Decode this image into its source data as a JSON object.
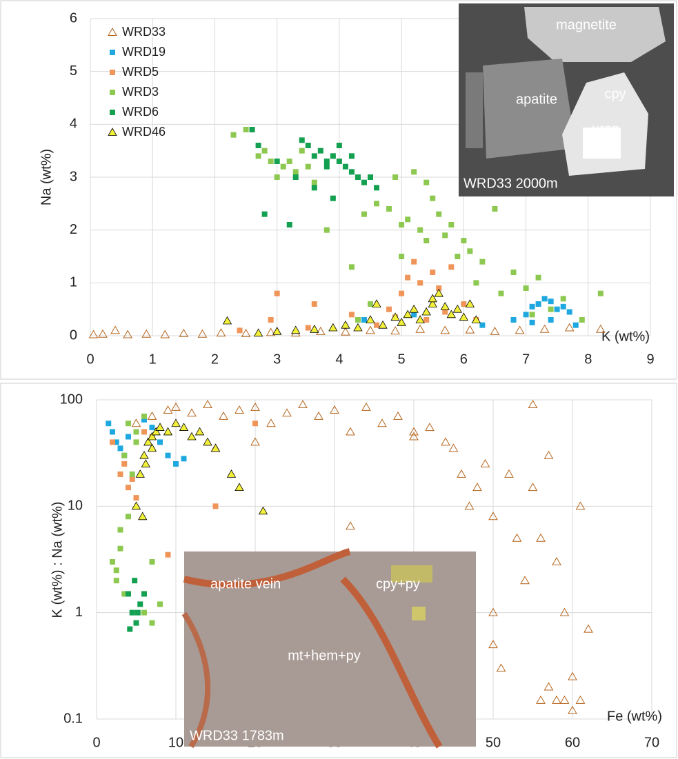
{
  "chart_data": [
    {
      "type": "scatter",
      "x_label": "K (wt%)",
      "y_label": "Na (wt%)",
      "xlim": [
        0,
        9
      ],
      "ylim": [
        0,
        6
      ],
      "xticks": [
        0,
        1,
        2,
        3,
        4,
        5,
        6,
        7,
        8,
        9
      ],
      "yticks": [
        0,
        1,
        2,
        3,
        4,
        5,
        6
      ],
      "grid": true,
      "legend": "upper left",
      "annotations": [
        "magnetite",
        "apatite",
        "cpy",
        "uran",
        "WRD33 2000m"
      ],
      "series": [
        {
          "name": "WRD33",
          "color": "#b5651d",
          "marker": "triangle-open",
          "x": [
            0.05,
            0.2,
            0.4,
            0.6,
            0.9,
            1.2,
            1.5,
            1.8,
            2.1,
            2.5,
            2.9,
            3.3,
            3.7,
            4.1,
            4.5,
            4.9,
            5.3,
            5.7,
            6.1,
            6.5,
            6.9,
            7.3,
            7.7,
            8.2
          ],
          "values": [
            0.02,
            0.03,
            0.1,
            0.02,
            0.03,
            0.02,
            0.04,
            0.03,
            0.05,
            0.04,
            0.06,
            0.05,
            0.08,
            0.07,
            0.1,
            0.09,
            0.12,
            0.1,
            0.11,
            0.08,
            0.1,
            0.12,
            0.15,
            0.12
          ]
        },
        {
          "name": "WRD19",
          "color": "#1fa8e0",
          "marker": "square",
          "x": [
            4.4,
            5.2,
            6.3,
            6.8,
            7.0,
            7.1,
            7.2,
            7.3,
            7.4,
            7.5,
            7.6,
            7.7,
            7.8,
            7.1,
            7.4
          ],
          "values": [
            0.3,
            0.4,
            0.2,
            0.3,
            0.4,
            0.55,
            0.6,
            0.7,
            0.65,
            0.5,
            0.55,
            0.45,
            0.2,
            0.25,
            0.3
          ]
        },
        {
          "name": "WRD5",
          "color": "#f0955a",
          "marker": "square",
          "x": [
            2.4,
            2.9,
            3.0,
            3.5,
            3.6,
            4.2,
            4.6,
            4.8,
            5.0,
            5.1,
            5.2,
            5.3,
            5.5,
            5.6,
            5.8,
            6.0,
            6.2,
            5.4,
            4.9,
            5.7
          ],
          "values": [
            0.1,
            0.3,
            0.8,
            0.15,
            0.6,
            0.4,
            0.2,
            0.5,
            0.8,
            1.1,
            1.4,
            1.0,
            1.2,
            0.9,
            1.3,
            0.6,
            0.3,
            0.3,
            0.35,
            0.45
          ]
        },
        {
          "name": "WRD3",
          "color": "#8dc850",
          "marker": "square",
          "x": [
            2.3,
            2.5,
            2.7,
            2.9,
            3.1,
            3.3,
            2.8,
            3.0,
            3.2,
            3.4,
            3.6,
            3.5,
            3.8,
            4.2,
            4.4,
            4.6,
            4.8,
            5.0,
            5.1,
            5.2,
            5.3,
            5.4,
            5.5,
            5.6,
            5.7,
            5.8,
            5.9,
            6.0,
            6.1,
            6.3,
            6.5,
            6.8,
            7.0,
            7.2,
            7.4,
            7.6,
            7.9,
            8.2,
            4.5,
            4.9,
            5.4,
            6.2,
            6.6,
            7.1,
            4.3,
            5.0
          ],
          "values": [
            3.8,
            3.9,
            3.4,
            3.3,
            3.2,
            3.1,
            3.5,
            3.0,
            3.3,
            3.5,
            2.9,
            3.2,
            2.0,
            1.3,
            2.3,
            2.5,
            2.4,
            2.1,
            2.2,
            3.1,
            2.0,
            1.8,
            2.6,
            2.3,
            1.9,
            2.1,
            1.5,
            1.8,
            1.6,
            1.4,
            2.4,
            1.2,
            0.9,
            1.1,
            0.5,
            0.7,
            0.3,
            0.8,
            0.6,
            3.0,
            2.9,
            1.0,
            0.8,
            0.4,
            0.3,
            1.5
          ]
        },
        {
          "name": "WRD6",
          "color": "#13a050",
          "marker": "square",
          "x": [
            2.6,
            2.7,
            3.0,
            3.3,
            3.5,
            3.6,
            3.7,
            3.8,
            3.9,
            4.0,
            4.1,
            4.2,
            4.3,
            4.4,
            4.5,
            3.4,
            3.8,
            4.0,
            4.2,
            3.6,
            4.6,
            3.9,
            2.8,
            3.2
          ],
          "values": [
            3.9,
            3.6,
            3.3,
            3.0,
            3.6,
            3.4,
            3.5,
            3.2,
            3.4,
            3.3,
            3.2,
            3.1,
            3.0,
            2.9,
            3.0,
            3.7,
            3.3,
            3.6,
            3.4,
            2.8,
            2.8,
            2.6,
            2.3,
            2.1
          ]
        },
        {
          "name": "WRD46",
          "color": "#f3f03a",
          "marker": "triangle",
          "x": [
            2.2,
            2.7,
            3.0,
            3.3,
            3.6,
            3.9,
            4.1,
            4.3,
            4.5,
            4.7,
            4.9,
            5.0,
            5.1,
            5.2,
            5.3,
            5.4,
            5.5,
            5.6,
            5.7,
            5.8,
            5.9,
            6.0,
            6.1,
            6.2,
            4.6,
            5.5
          ],
          "values": [
            0.28,
            0.05,
            0.08,
            0.1,
            0.12,
            0.15,
            0.2,
            0.15,
            0.3,
            0.2,
            0.35,
            0.25,
            0.4,
            0.5,
            0.3,
            0.45,
            0.6,
            0.8,
            0.55,
            0.4,
            0.5,
            0.35,
            0.6,
            0.3,
            0.6,
            0.7
          ]
        }
      ]
    },
    {
      "type": "scatter",
      "x_label": "Fe (wt%)",
      "y_label": "K (wt%) : Na (wt%)",
      "xlim": [
        0,
        70
      ],
      "ylim": [
        0.1,
        100
      ],
      "xticks": [
        0,
        10,
        20,
        30,
        40,
        50,
        60,
        70
      ],
      "yticks": [
        0.1,
        1,
        10,
        100
      ],
      "ylog": true,
      "grid": true,
      "annotations": [
        "apatite  vein",
        "cpy+py",
        "mt+hem+py",
        "WRD33 1783m"
      ],
      "series": [
        {
          "color": "#b5651d",
          "marker": "triangle-open",
          "x": [
            5,
            7,
            9,
            10,
            12,
            14,
            16,
            18,
            20,
            22,
            24,
            26,
            28,
            30,
            32,
            34,
            36,
            38,
            40,
            42,
            44,
            45,
            46,
            47,
            48,
            49,
            50,
            50,
            51,
            52,
            53,
            54,
            55,
            55,
            56,
            56,
            57,
            57,
            58,
            58,
            59,
            59,
            60,
            60,
            61,
            61,
            62,
            32,
            40,
            50,
            20,
            15
          ],
          "values": [
            60,
            70,
            80,
            85,
            75,
            90,
            70,
            80,
            85,
            60,
            75,
            90,
            70,
            80,
            50,
            85,
            60,
            70,
            45,
            55,
            40,
            35,
            20,
            10,
            15,
            25,
            8,
            0.5,
            0.3,
            20,
            5,
            2,
            90,
            15,
            0.15,
            5,
            30,
            0.2,
            3,
            0.15,
            0.15,
            1,
            0.12,
            0.25,
            0.15,
            10,
            0.7,
            6.5,
            50,
            1.0,
            40,
            35
          ]
        },
        {
          "color": "#1fa8e0",
          "marker": "square",
          "x": [
            1.5,
            2,
            2.5,
            3,
            3.5,
            4,
            6,
            7,
            8,
            9,
            10,
            11
          ],
          "values": [
            60,
            50,
            40,
            35,
            30,
            45,
            65,
            55,
            40,
            30,
            25,
            28
          ]
        },
        {
          "color": "#f0955a",
          "marker": "square",
          "x": [
            2,
            3,
            4,
            5,
            6,
            7,
            9,
            15,
            20,
            3.5,
            4.5
          ],
          "values": [
            40,
            20,
            15,
            12,
            50,
            45,
            3.5,
            10,
            60,
            25,
            18
          ]
        },
        {
          "color": "#8dc850",
          "marker": "square",
          "x": [
            2,
            2.5,
            3,
            3.5,
            4,
            4.5,
            5,
            6,
            7,
            8,
            3,
            4,
            5,
            6,
            7,
            2.5,
            3.5
          ],
          "values": [
            3,
            2,
            4,
            1.5,
            8,
            20,
            40,
            1,
            0.8,
            1.2,
            6,
            60,
            50,
            70,
            3,
            2.5,
            30
          ]
        },
        {
          "color": "#13a050",
          "marker": "square",
          "x": [
            4,
            4.5,
            5,
            5.5,
            6,
            4.2,
            4.8,
            5.2
          ],
          "values": [
            1.5,
            1,
            0.8,
            1.2,
            1.5,
            0.7,
            2,
            1
          ]
        },
        {
          "color": "#f3f03a",
          "marker": "triangle",
          "x": [
            5,
            5.5,
            6,
            6.5,
            7,
            7.5,
            8,
            9,
            10,
            11,
            12,
            13,
            14,
            15,
            17,
            18,
            21,
            5.8,
            6.2,
            7
          ],
          "values": [
            10,
            20,
            30,
            40,
            45,
            50,
            55,
            50,
            60,
            55,
            45,
            50,
            40,
            35,
            20,
            15,
            9,
            8,
            25,
            35
          ]
        }
      ]
    }
  ]
}
